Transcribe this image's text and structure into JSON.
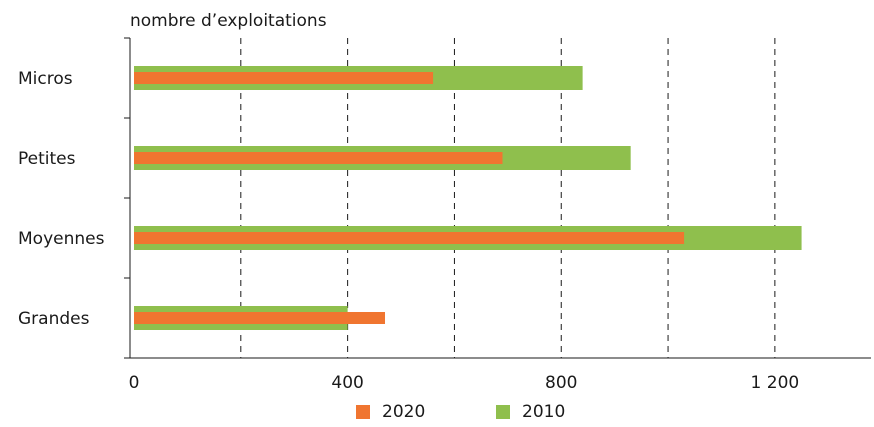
{
  "chart_data": {
    "type": "bar",
    "orientation": "horizontal",
    "ylabel": "nombre d’exploitations",
    "categories": [
      "Micros",
      "Petites",
      "Moyennes",
      "Grandes"
    ],
    "series": [
      {
        "name": "2020",
        "values": [
          560,
          690,
          1030,
          470
        ],
        "color": "#f07530"
      },
      {
        "name": "2010",
        "values": [
          840,
          930,
          1250,
          400
        ],
        "color": "#8fbf4d"
      }
    ],
    "xlim": [
      0,
      1380
    ],
    "xticks": [
      0,
      400,
      800,
      1200
    ],
    "xtick_labels": [
      "0",
      "400",
      "800",
      "1 200"
    ],
    "grid": "vertical dashed",
    "legend_position": "bottom-center"
  }
}
